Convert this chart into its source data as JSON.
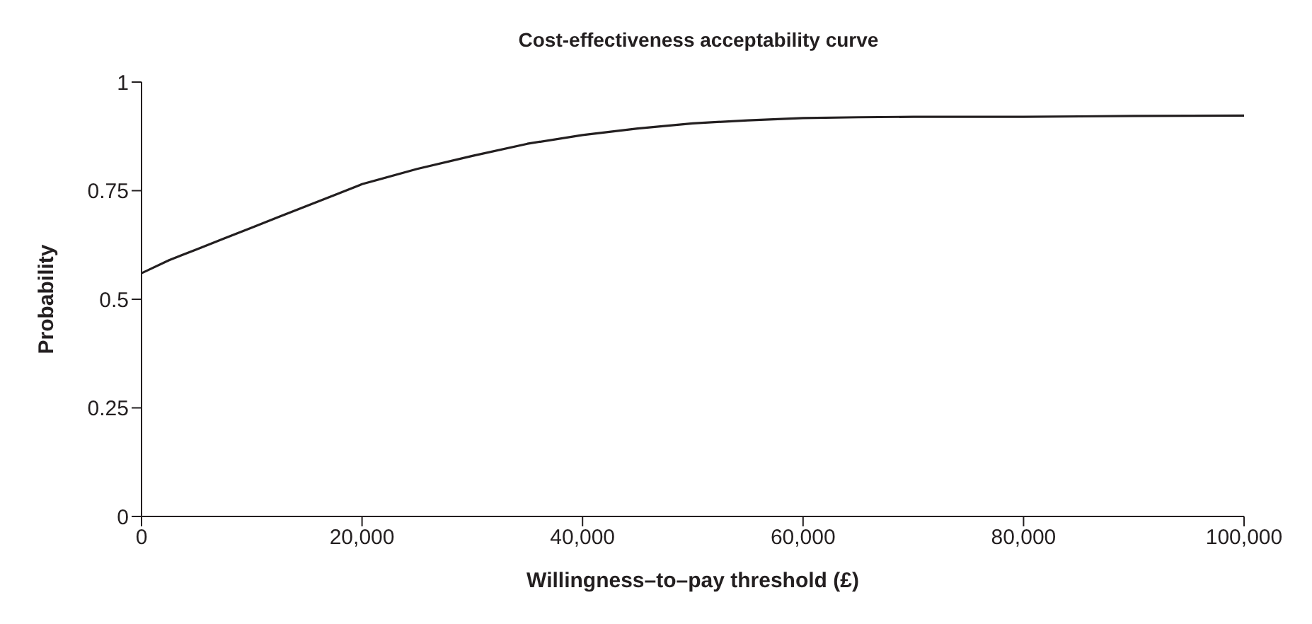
{
  "chart_data": {
    "type": "line",
    "title": "Cost-effectiveness acceptability curve",
    "xlabel": "Willingness–to–pay threshold (£)",
    "ylabel": "Probability",
    "x": [
      0,
      2500,
      5000,
      7500,
      10000,
      12500,
      15000,
      17500,
      20000,
      25000,
      30000,
      35000,
      40000,
      45000,
      50000,
      55000,
      60000,
      65000,
      70000,
      80000,
      90000,
      100000
    ],
    "series": [
      {
        "color": "#231f20",
        "values": [
          0.56,
          0.59,
          0.615,
          0.64,
          0.665,
          0.69,
          0.715,
          0.74,
          0.765,
          0.8,
          0.83,
          0.858,
          0.878,
          0.893,
          0.905,
          0.912,
          0.917,
          0.919,
          0.92,
          0.92,
          0.922,
          0.923
        ]
      }
    ],
    "xlim": [
      0,
      100000
    ],
    "xticks": [
      0,
      {
        "value": 20000,
        "label": "20,000"
      },
      {
        "value": 40000,
        "label": "40,000"
      },
      {
        "value": 60000,
        "label": "60,000"
      },
      {
        "value": 80000,
        "label": "80,000"
      },
      {
        "value": 100000,
        "label": "100,000"
      }
    ],
    "ylim": [
      0,
      1
    ],
    "yticks": [
      0,
      0.25,
      0.5,
      0.75,
      1
    ],
    "grid": false,
    "marker": "none",
    "line_style": "solid"
  }
}
